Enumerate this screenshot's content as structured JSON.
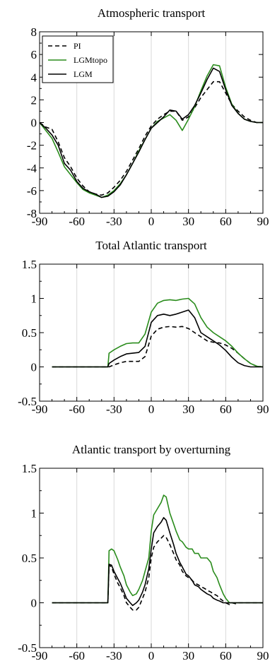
{
  "chart_data": [
    {
      "type": "line",
      "title": "Atmospheric transport",
      "xlim": [
        -90,
        90
      ],
      "ylim": [
        -8,
        8
      ],
      "xticks": [
        -90,
        -60,
        -30,
        0,
        30,
        60,
        90
      ],
      "yticks": [
        -8,
        -6,
        -4,
        -2,
        0,
        2,
        4,
        6,
        8
      ],
      "grid": "vertical",
      "legend": "top-left",
      "series": [
        {
          "name": "PI",
          "color": "#000000",
          "dash": "dashed",
          "x": [
            -90,
            -85,
            -80,
            -75,
            -70,
            -65,
            -60,
            -55,
            -50,
            -45,
            -40,
            -35,
            -30,
            -25,
            -20,
            -15,
            -10,
            -5,
            0,
            5,
            10,
            15,
            20,
            25,
            30,
            35,
            40,
            45,
            50,
            55,
            60,
            65,
            70,
            75,
            80,
            85,
            90
          ],
          "y": [
            0,
            -0.4,
            -0.6,
            -1.7,
            -3.1,
            -3.9,
            -4.9,
            -5.6,
            -6.1,
            -6.3,
            -6.4,
            -6.2,
            -5.7,
            -5.1,
            -4.3,
            -3.3,
            -2.3,
            -1.2,
            -0.3,
            0.3,
            0.7,
            1.0,
            1.0,
            0.2,
            0.5,
            1.3,
            2.2,
            2.9,
            3.6,
            3.6,
            2.6,
            1.6,
            1.0,
            0.5,
            0.2,
            0,
            0
          ]
        },
        {
          "name": "LGMtopo",
          "color": "#2a8c1c",
          "dash": "solid",
          "x": [
            -90,
            -85,
            -80,
            -75,
            -70,
            -65,
            -60,
            -55,
            -50,
            -45,
            -40,
            -35,
            -30,
            -25,
            -20,
            -15,
            -10,
            -5,
            0,
            5,
            10,
            15,
            20,
            25,
            30,
            35,
            40,
            45,
            50,
            55,
            60,
            65,
            70,
            75,
            80,
            85,
            90
          ],
          "y": [
            0,
            -0.7,
            -1.4,
            -2.6,
            -3.9,
            -4.6,
            -5.3,
            -5.9,
            -6.2,
            -6.4,
            -6.6,
            -6.4,
            -6.0,
            -5.4,
            -4.6,
            -3.6,
            -2.5,
            -1.5,
            -0.5,
            0.1,
            0.4,
            0.7,
            0.2,
            -0.7,
            0.3,
            1.4,
            2.8,
            4.1,
            5.1,
            5.0,
            3.1,
            1.6,
            0.8,
            0.3,
            0.1,
            0,
            0
          ]
        },
        {
          "name": "LGM",
          "color": "#000000",
          "dash": "solid",
          "x": [
            -90,
            -85,
            -80,
            -75,
            -70,
            -65,
            -60,
            -55,
            -50,
            -45,
            -40,
            -35,
            -30,
            -25,
            -20,
            -15,
            -10,
            -5,
            0,
            5,
            10,
            15,
            20,
            25,
            30,
            35,
            40,
            45,
            50,
            55,
            60,
            65,
            70,
            75,
            80,
            85,
            90
          ],
          "y": [
            0,
            -0.5,
            -1.1,
            -2.0,
            -3.6,
            -4.2,
            -5.2,
            -5.8,
            -6.1,
            -6.3,
            -6.6,
            -6.5,
            -6.1,
            -5.5,
            -4.6,
            -3.6,
            -2.6,
            -1.5,
            -0.5,
            0,
            0.5,
            1.1,
            1.0,
            0.3,
            0.7,
            1.5,
            2.6,
            3.8,
            4.8,
            4.5,
            2.9,
            1.5,
            0.8,
            0.3,
            0.1,
            0,
            0
          ]
        }
      ]
    },
    {
      "type": "line",
      "title": "Total Atlantic transport",
      "xlim": [
        -90,
        90
      ],
      "ylim": [
        -0.5,
        1.5
      ],
      "xticks": [
        -90,
        -60,
        -30,
        0,
        30,
        60,
        90
      ],
      "yticks": [
        -0.5,
        0,
        0.5,
        1,
        1.5
      ],
      "grid": "vertical",
      "series": [
        {
          "name": "PI",
          "color": "#000000",
          "dash": "dashed",
          "x": [
            -80,
            -70,
            -60,
            -50,
            -40,
            -35,
            -34,
            -30,
            -25,
            -20,
            -15,
            -10,
            -5,
            0,
            5,
            10,
            15,
            20,
            25,
            30,
            35,
            40,
            45,
            50,
            55,
            60,
            65,
            70,
            75,
            80,
            85,
            90
          ],
          "y": [
            0,
            0,
            0,
            0,
            0,
            0,
            0,
            0.03,
            0.06,
            0.08,
            0.08,
            0.08,
            0.15,
            0.45,
            0.55,
            0.58,
            0.59,
            0.58,
            0.59,
            0.56,
            0.5,
            0.44,
            0.38,
            0.36,
            0.35,
            0.32,
            0.27,
            0.2,
            0.12,
            0.05,
            0.01,
            0
          ]
        },
        {
          "name": "LGMtopo",
          "color": "#2a8c1c",
          "dash": "solid",
          "x": [
            -80,
            -70,
            -60,
            -50,
            -40,
            -35,
            -34,
            -30,
            -25,
            -20,
            -15,
            -10,
            -5,
            0,
            5,
            10,
            15,
            20,
            25,
            30,
            35,
            40,
            45,
            50,
            55,
            60,
            65,
            70,
            75,
            80,
            85,
            90
          ],
          "y": [
            0,
            0,
            0,
            0,
            0,
            0,
            0.2,
            0.25,
            0.3,
            0.34,
            0.35,
            0.35,
            0.48,
            0.8,
            0.93,
            0.97,
            0.98,
            0.97,
            0.99,
            1.0,
            0.92,
            0.72,
            0.58,
            0.5,
            0.44,
            0.38,
            0.3,
            0.2,
            0.12,
            0.05,
            0.01,
            0
          ]
        },
        {
          "name": "LGM",
          "color": "#000000",
          "dash": "solid",
          "x": [
            -80,
            -70,
            -60,
            -50,
            -40,
            -35,
            -34,
            -30,
            -25,
            -20,
            -15,
            -10,
            -5,
            0,
            5,
            10,
            15,
            20,
            25,
            30,
            35,
            40,
            45,
            50,
            55,
            60,
            65,
            70,
            75,
            80,
            85,
            90
          ],
          "y": [
            0,
            0,
            0,
            0,
            0,
            0,
            0.05,
            0.1,
            0.15,
            0.19,
            0.2,
            0.21,
            0.3,
            0.65,
            0.75,
            0.77,
            0.75,
            0.77,
            0.8,
            0.83,
            0.72,
            0.5,
            0.44,
            0.38,
            0.32,
            0.24,
            0.14,
            0.06,
            0.02,
            0,
            0,
            0
          ]
        }
      ]
    },
    {
      "type": "line",
      "title": "Atlantic transport by overturning",
      "xlim": [
        -90,
        90
      ],
      "ylim": [
        -0.5,
        1.5
      ],
      "xticks": [
        -90,
        -60,
        -30,
        0,
        30,
        60,
        90
      ],
      "yticks": [
        -0.5,
        0,
        0.5,
        1,
        1.5
      ],
      "grid": "vertical",
      "series": [
        {
          "name": "PI",
          "color": "#000000",
          "dash": "dashed",
          "x": [
            -80,
            -70,
            -60,
            -50,
            -40,
            -35,
            -34,
            -32,
            -30,
            -27,
            -25,
            -22,
            -20,
            -17,
            -15,
            -12,
            -10,
            -7,
            -5,
            -2,
            0,
            2,
            5,
            8,
            10,
            12,
            15,
            18,
            20,
            23,
            25,
            28,
            30,
            33,
            35,
            38,
            40,
            43,
            45,
            48,
            50,
            53,
            55,
            58,
            60,
            63,
            65,
            68,
            70,
            75,
            80,
            85,
            90
          ],
          "y": [
            0,
            0,
            0,
            0,
            0,
            0,
            0.42,
            0.4,
            0.32,
            0.22,
            0.17,
            0.08,
            0,
            -0.05,
            -0.08,
            -0.08,
            -0.05,
            0.05,
            0.12,
            0.28,
            0.5,
            0.62,
            0.68,
            0.72,
            0.75,
            0.73,
            0.65,
            0.55,
            0.48,
            0.42,
            0.35,
            0.3,
            0.28,
            0.25,
            0.22,
            0.2,
            0.18,
            0.16,
            0.14,
            0.12,
            0.1,
            0.08,
            0.05,
            0.02,
            0,
            -0.02,
            0,
            -0.01,
            0,
            0,
            0,
            0,
            0
          ]
        },
        {
          "name": "LGMtopo",
          "color": "#2a8c1c",
          "dash": "solid",
          "x": [
            -80,
            -70,
            -60,
            -50,
            -40,
            -35,
            -34,
            -32,
            -30,
            -27,
            -25,
            -22,
            -20,
            -17,
            -15,
            -12,
            -10,
            -7,
            -5,
            -2,
            0,
            2,
            5,
            8,
            10,
            12,
            15,
            18,
            20,
            23,
            25,
            28,
            30,
            33,
            35,
            38,
            40,
            43,
            45,
            48,
            50,
            53,
            55,
            58,
            60,
            63,
            65,
            68,
            70,
            75,
            80,
            85,
            90
          ],
          "y": [
            0,
            0,
            0,
            0,
            0,
            0,
            0.58,
            0.6,
            0.58,
            0.48,
            0.4,
            0.3,
            0.2,
            0.12,
            0.08,
            0.1,
            0.15,
            0.25,
            0.35,
            0.5,
            0.8,
            0.98,
            1.05,
            1.12,
            1.2,
            1.18,
            1.0,
            0.88,
            0.8,
            0.7,
            0.68,
            0.62,
            0.6,
            0.6,
            0.55,
            0.55,
            0.5,
            0.5,
            0.5,
            0.45,
            0.35,
            0.28,
            0.2,
            0.1,
            0.05,
            0,
            0,
            0,
            0,
            0,
            0,
            0,
            0
          ]
        },
        {
          "name": "LGM",
          "color": "#000000",
          "dash": "solid",
          "x": [
            -80,
            -70,
            -60,
            -50,
            -40,
            -35,
            -34,
            -32,
            -30,
            -27,
            -25,
            -22,
            -20,
            -17,
            -15,
            -12,
            -10,
            -7,
            -5,
            -2,
            0,
            2,
            5,
            8,
            10,
            12,
            15,
            18,
            20,
            23,
            25,
            28,
            30,
            33,
            35,
            38,
            40,
            43,
            45,
            48,
            50,
            53,
            55,
            58,
            60,
            63,
            65,
            68,
            70,
            75,
            80,
            85,
            90
          ],
          "y": [
            0,
            0,
            0,
            0,
            0,
            0,
            0.43,
            0.42,
            0.35,
            0.27,
            0.22,
            0.12,
            0.05,
            0,
            -0.03,
            0,
            0.03,
            0.12,
            0.2,
            0.38,
            0.6,
            0.78,
            0.85,
            0.9,
            0.95,
            0.92,
            0.78,
            0.65,
            0.55,
            0.45,
            0.4,
            0.32,
            0.3,
            0.25,
            0.2,
            0.18,
            0.15,
            0.12,
            0.1,
            0.08,
            0.05,
            0.03,
            0.02,
            0,
            0,
            0,
            0,
            0,
            0,
            0,
            0,
            0,
            0
          ]
        }
      ]
    }
  ]
}
